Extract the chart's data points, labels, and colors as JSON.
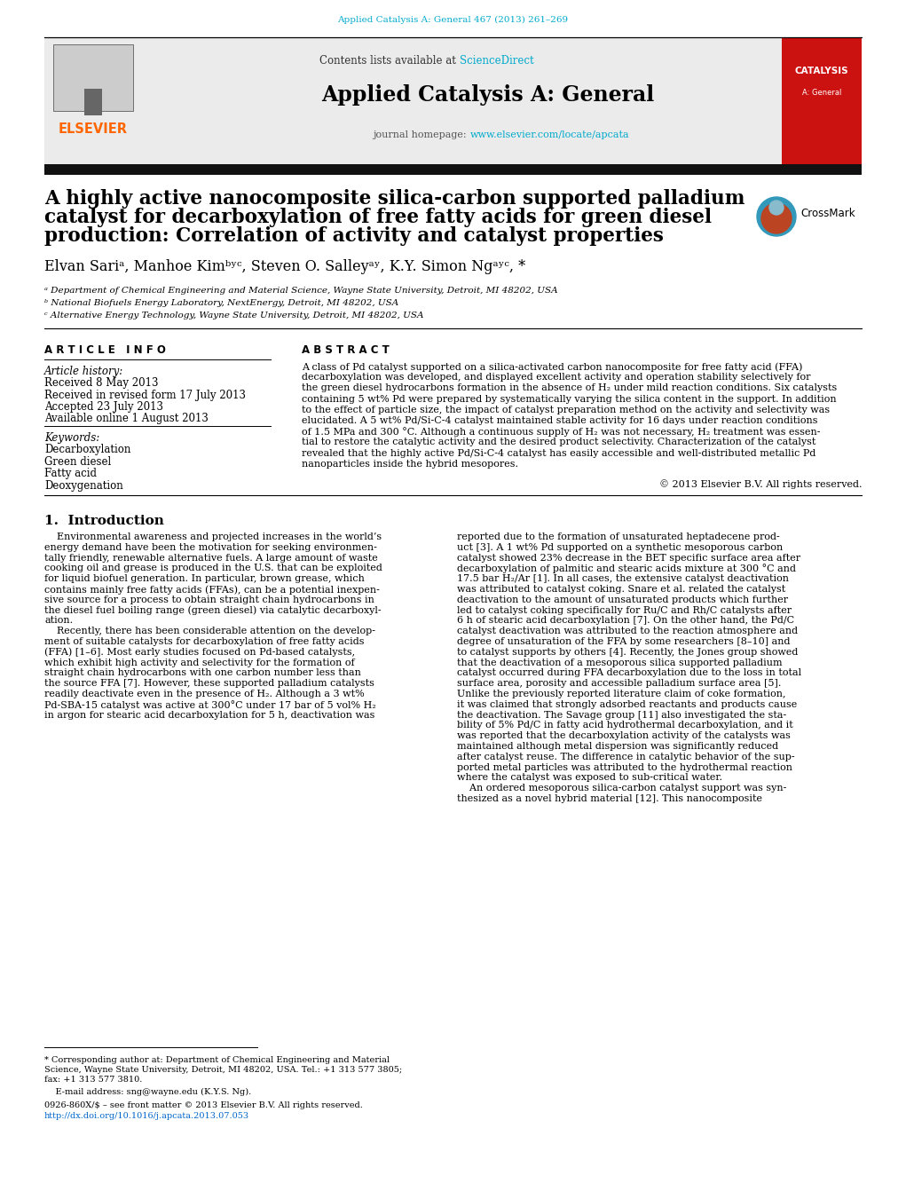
{
  "journal_ref": "Applied Catalysis A: General 467 (2013) 261–269",
  "journal_ref_color": "#00AACC",
  "journal_name": "Applied Catalysis A: General",
  "sciencedirect_color": "#00AACC",
  "homepage_url": "www.elsevier.com/locate/apcata",
  "homepage_url_color": "#00AACC",
  "elsevier_color": "#FF6600",
  "title_line1": "A highly active nanocomposite silica-carbon supported palladium",
  "title_line2": "catalyst for decarboxylation of free fatty acids for green diesel",
  "title_line3": "production: Correlation of activity and catalyst properties",
  "affil_a": "ᵃ Department of Chemical Engineering and Material Science, Wayne State University, Detroit, MI 48202, USA",
  "affil_b": "ᵇ National Biofuels Energy Laboratory, NextEnergy, Detroit, MI 48202, USA",
  "affil_c": "ᶜ Alternative Energy Technology, Wayne State University, Detroit, MI 48202, USA",
  "received1": "Received 8 May 2013",
  "received2": "Received in revised form 17 July 2013",
  "accepted": "Accepted 23 July 2013",
  "available": "Available online 1 August 2013",
  "keywords": [
    "Decarboxylation",
    "Green diesel",
    "Fatty acid",
    "Deoxygenation"
  ],
  "abstract_lines": [
    "A class of Pd catalyst supported on a silica-activated carbon nanocomposite for free fatty acid (FFA)",
    "decarboxylation was developed, and displayed excellent activity and operation stability selectively for",
    "the green diesel hydrocarbons formation in the absence of H₂ under mild reaction conditions. Six catalysts",
    "containing 5 wt% Pd were prepared by systematically varying the silica content in the support. In addition",
    "to the effect of particle size, the impact of catalyst preparation method on the activity and selectivity was",
    "elucidated. A 5 wt% Pd/Si-C-4 catalyst maintained stable activity for 16 days under reaction conditions",
    "of 1.5 MPa and 300 °C. Although a continuous supply of H₂ was not necessary, H₂ treatment was essen-",
    "tial to restore the catalytic activity and the desired product selectivity. Characterization of the catalyst",
    "revealed that the highly active Pd/Si-C-4 catalyst has easily accessible and well-distributed metallic Pd",
    "nanoparticles inside the hybrid mesopores."
  ],
  "copyright": "© 2013 Elsevier B.V. All rights reserved.",
  "intro_col1_lines": [
    "    Environmental awareness and projected increases in the world’s",
    "energy demand have been the motivation for seeking environmen-",
    "tally friendly, renewable alternative fuels. A large amount of waste",
    "cooking oil and grease is produced in the U.S. that can be exploited",
    "for liquid biofuel generation. In particular, brown grease, which",
    "contains mainly free fatty acids (FFAs), can be a potential inexpen-",
    "sive source for a process to obtain straight chain hydrocarbons in",
    "the diesel fuel boiling range (green diesel) via catalytic decarboxyl-",
    "ation.",
    "    Recently, there has been considerable attention on the develop-",
    "ment of suitable catalysts for decarboxylation of free fatty acids",
    "(FFA) [1–6]. Most early studies focused on Pd-based catalysts,",
    "which exhibit high activity and selectivity for the formation of",
    "straight chain hydrocarbons with one carbon number less than",
    "the source FFA [7]. However, these supported palladium catalysts",
    "readily deactivate even in the presence of H₂. Although a 3 wt%",
    "Pd-SBA-15 catalyst was active at 300°C under 17 bar of 5 vol% H₂",
    "in argon for stearic acid decarboxylation for 5 h, deactivation was"
  ],
  "intro_col2_lines": [
    "reported due to the formation of unsaturated heptadecene prod-",
    "uct [3]. A 1 wt% Pd supported on a synthetic mesoporous carbon",
    "catalyst showed 23% decrease in the BET specific surface area after",
    "decarboxylation of palmitic and stearic acids mixture at 300 °C and",
    "17.5 bar H₂/Ar [1]. In all cases, the extensive catalyst deactivation",
    "was attributed to catalyst coking. Snare et al. related the catalyst",
    "deactivation to the amount of unsaturated products which further",
    "led to catalyst coking specifically for Ru/C and Rh/C catalysts after",
    "6 h of stearic acid decarboxylation [7]. On the other hand, the Pd/C",
    "catalyst deactivation was attributed to the reaction atmosphere and",
    "degree of unsaturation of the FFA by some researchers [8–10] and",
    "to catalyst supports by others [4]. Recently, the Jones group showed",
    "that the deactivation of a mesoporous silica supported palladium",
    "catalyst occurred during FFA decarboxylation due to the loss in total",
    "surface area, porosity and accessible palladium surface area [5].",
    "Unlike the previously reported literature claim of coke formation,",
    "it was claimed that strongly adsorbed reactants and products cause",
    "the deactivation. The Savage group [11] also investigated the sta-",
    "bility of 5% Pd/C in fatty acid hydrothermal decarboxylation, and it",
    "was reported that the decarboxylation activity of the catalysts was",
    "maintained although metal dispersion was significantly reduced",
    "after catalyst reuse. The difference in catalytic behavior of the sup-",
    "ported metal particles was attributed to the hydrothermal reaction",
    "where the catalyst was exposed to sub-critical water.",
    "    An ordered mesoporous silica-carbon catalyst support was syn-",
    "thesized as a novel hybrid material [12]. This nanocomposite"
  ],
  "fn1": "* Corresponding author at: Department of Chemical Engineering and Material",
  "fn2": "Science, Wayne State University, Detroit, MI 48202, USA. Tel.: +1 313 577 3805;",
  "fn3": "fax: +1 313 577 3810.",
  "fn4": "    E-mail address: sng@wayne.edu (K.Y.S. Ng).",
  "fn5": "0926-860X/$ – see front matter © 2013 Elsevier B.V. All rights reserved.",
  "fn6": "http://dx.doi.org/10.1016/j.apcata.2013.07.053",
  "fn6_color": "#0066CC",
  "header_gray": "#EBEBEB",
  "dark_bar": "#111111",
  "red_cover": "#CC1111"
}
